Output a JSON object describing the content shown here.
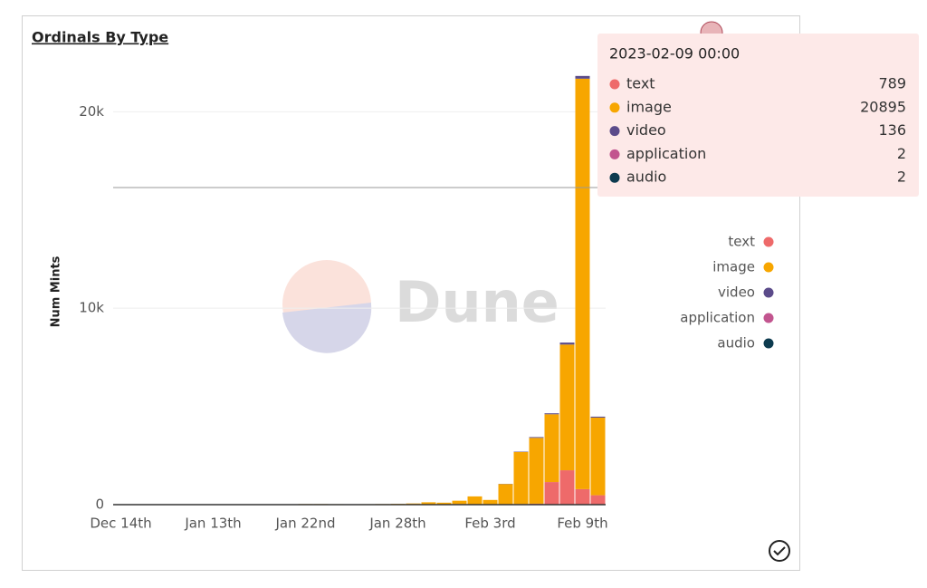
{
  "chart_data": {
    "type": "bar",
    "stacked": true,
    "title": "Ordinals By Type",
    "y_label": "Num Mints",
    "watermark": "Dune",
    "categories": [
      "Dec 14th",
      null,
      null,
      null,
      null,
      null,
      "Jan 13th",
      null,
      null,
      null,
      null,
      null,
      "Jan 22nd",
      null,
      null,
      null,
      null,
      null,
      "Jan 28th",
      null,
      null,
      null,
      null,
      null,
      "Feb 3rd",
      null,
      null,
      null,
      null,
      null,
      "Feb 9th",
      null
    ],
    "series": [
      {
        "name": "text",
        "color": "#ee6a6a",
        "values": [
          0,
          0,
          0,
          0,
          0,
          0,
          0,
          0,
          0,
          0,
          0,
          0,
          0,
          0,
          0,
          0,
          0,
          0,
          0,
          10,
          10,
          20,
          30,
          20,
          10,
          20,
          30,
          50,
          1150,
          1750,
          789,
          480
        ]
      },
      {
        "name": "image",
        "color": "#f7a600",
        "values": [
          5,
          5,
          5,
          5,
          5,
          5,
          10,
          10,
          15,
          15,
          20,
          20,
          30,
          30,
          25,
          20,
          25,
          30,
          40,
          50,
          110,
          80,
          170,
          400,
          230,
          1030,
          2650,
          3350,
          3450,
          6400,
          20895,
          3950
        ]
      },
      {
        "name": "video",
        "color": "#5b4b8a",
        "values": [
          0,
          0,
          0,
          0,
          0,
          0,
          0,
          0,
          0,
          0,
          0,
          0,
          0,
          0,
          0,
          0,
          0,
          0,
          0,
          0,
          0,
          0,
          0,
          0,
          0,
          10,
          20,
          40,
          50,
          100,
          136,
          50
        ]
      },
      {
        "name": "application",
        "color": "#c2558f",
        "values": [
          0,
          0,
          0,
          0,
          0,
          0,
          0,
          0,
          0,
          0,
          0,
          0,
          0,
          0,
          0,
          0,
          0,
          0,
          0,
          0,
          0,
          0,
          0,
          0,
          0,
          0,
          0,
          0,
          0,
          0,
          2,
          0
        ]
      },
      {
        "name": "audio",
        "color": "#0d3b4f",
        "values": [
          0,
          0,
          0,
          0,
          0,
          0,
          0,
          0,
          0,
          0,
          0,
          0,
          0,
          0,
          0,
          0,
          0,
          0,
          0,
          0,
          0,
          0,
          0,
          0,
          0,
          0,
          0,
          0,
          0,
          0,
          2,
          0
        ]
      }
    ],
    "ylim": [
      0,
      22000
    ],
    "yticks": [
      0,
      {
        "value": 10000,
        "label": "10k"
      },
      {
        "value": 20000,
        "label": "20k"
      }
    ],
    "grid": true,
    "legend": "right",
    "tooltip_title": "2023-02-09 00:00"
  }
}
